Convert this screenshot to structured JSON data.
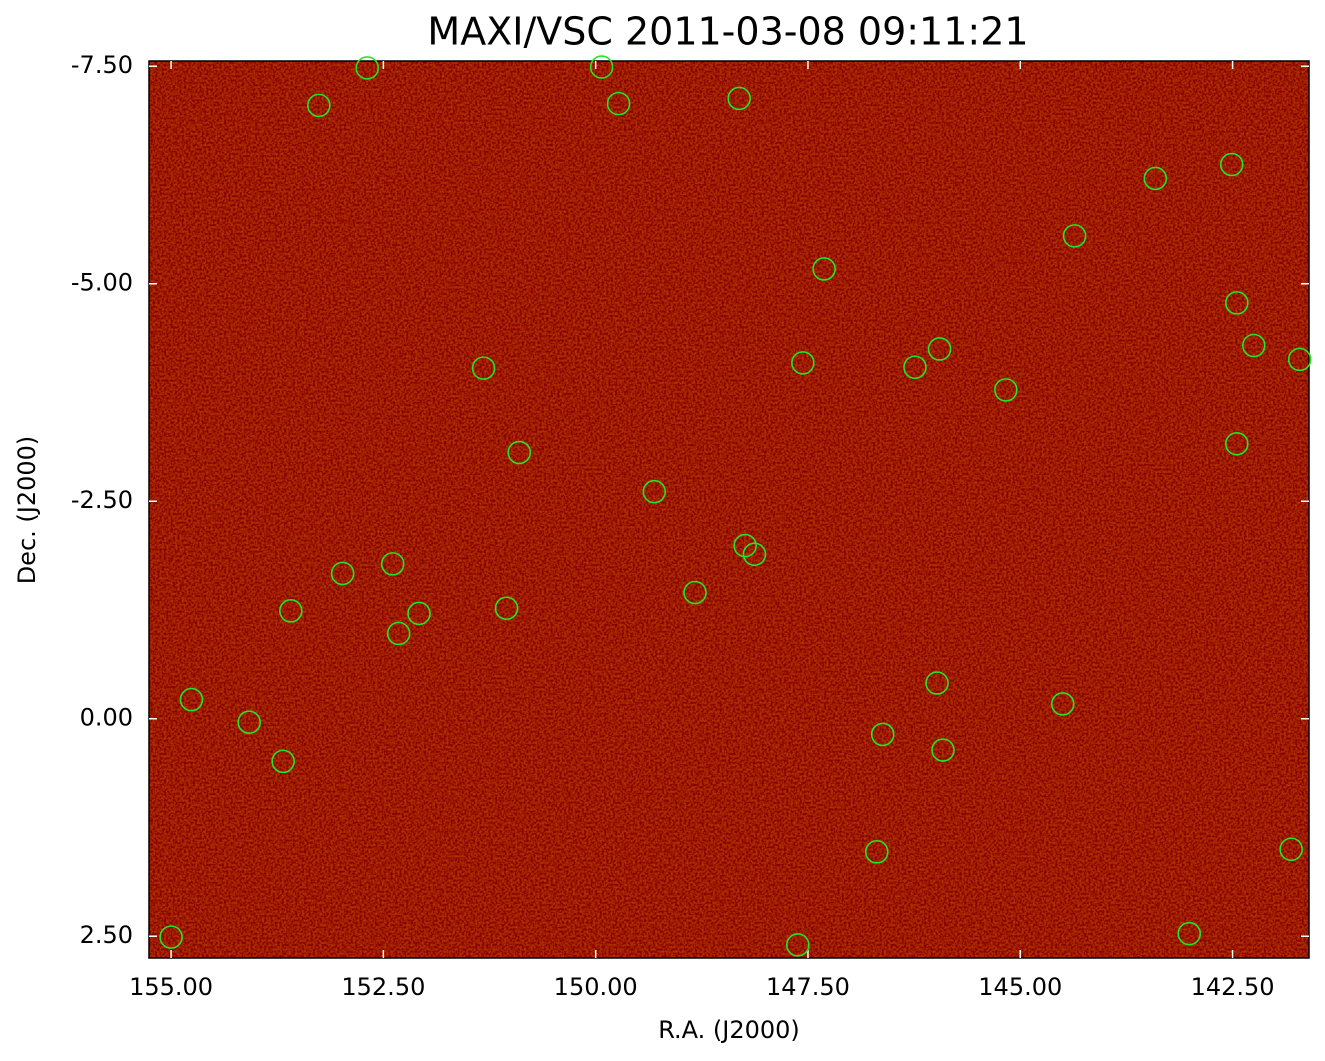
{
  "chart_data": {
    "type": "scatter",
    "title": "MAXI/VSC 2011-03-08 09:11:21",
    "x_label": "R.A. (J2000)",
    "y_label": "Dec. (J2000)",
    "xlim": [
      155.26,
      141.6
    ],
    "ylim": [
      -7.56,
      2.75
    ],
    "xticks": [
      {
        "value": 155,
        "label": "155.00"
      },
      {
        "value": 152.5,
        "label": "152.50"
      },
      {
        "value": 150,
        "label": "150.00"
      },
      {
        "value": 147.5,
        "label": "147.50"
      },
      {
        "value": 145,
        "label": "145.00"
      },
      {
        "value": 142.5,
        "label": "142.50"
      }
    ],
    "yticks": [
      {
        "value": -7.5,
        "label": "-7.50"
      },
      {
        "value": -5,
        "label": "-5.00"
      },
      {
        "value": -2.5,
        "label": "-2.50"
      },
      {
        "value": 0,
        "label": "0.00"
      },
      {
        "value": 2.5,
        "label": "2.50"
      }
    ],
    "color": "#22e622",
    "x": [
      152.69,
      153.26,
      149.93,
      149.73,
      148.31,
      143.41,
      142.51,
      144.36,
      147.31,
      142.45,
      142.25,
      141.71,
      147.56,
      146.24,
      145.95,
      145.17,
      151.32,
      150.9,
      142.45,
      149.31,
      148.24,
      148.13,
      148.83,
      152.98,
      152.39,
      153.59,
      152.08,
      152.32,
      151.05,
      154.76,
      154.08,
      153.68,
      145.98,
      144.5,
      146.62,
      145.91,
      146.69,
      141.81,
      155.0,
      147.62,
      143.01
    ],
    "values": [
      -7.48,
      -7.05,
      -7.49,
      -7.07,
      -7.13,
      -6.21,
      -6.37,
      -5.55,
      -5.17,
      -4.78,
      -4.29,
      -4.13,
      -4.09,
      -4.04,
      -4.25,
      -3.78,
      -4.03,
      -3.06,
      -3.16,
      -2.61,
      -1.99,
      -1.89,
      -1.45,
      -1.67,
      -1.78,
      -1.24,
      -1.21,
      -0.98,
      -1.27,
      -0.22,
      0.04,
      0.49,
      -0.41,
      -0.17,
      0.18,
      0.36,
      1.53,
      1.5,
      2.51,
      2.6,
      2.47
    ]
  }
}
